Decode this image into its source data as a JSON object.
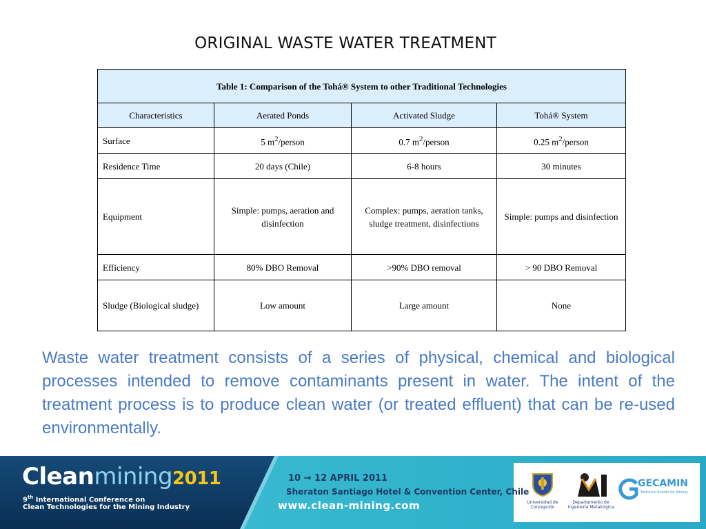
{
  "slide": {
    "title": "ORIGINAL WASTE WATER TREATMENT",
    "body": "Waste water treatment consists of a series of physical, chemical and biological processes intended to remove contaminants present in water. The intent of the treatment process is to produce clean water (or treated effluent) that can be re-used environmentally."
  },
  "table": {
    "caption": "Table 1: Comparison of the Tohá® System to other Traditional Technologies",
    "headers": [
      "Characteristics",
      "Aerated Ponds",
      "Activated Sludge",
      "Tohá® System"
    ],
    "rows": [
      {
        "name": "Surface",
        "cells": [
          [
            "5 m",
            "2",
            "/person"
          ],
          [
            "0.7 m",
            "2",
            "/person"
          ],
          [
            "0.25 m",
            "2",
            "/person"
          ]
        ]
      },
      {
        "name": "Residence Time",
        "cells": [
          "20 days (Chile)",
          "6-8 hours",
          "30 minutes"
        ]
      },
      {
        "name": "Equipment",
        "cells": [
          "Simple: pumps, aeration and disinfection",
          "Complex: pumps, aeration tanks, sludge treatment, disinfections",
          "Simple: pumps and disinfection"
        ]
      },
      {
        "name": "Efficiency",
        "cells": [
          "80% DBO Removal",
          ">90% DBO removal",
          "> 90 DBO Removal"
        ]
      },
      {
        "name": "Sludge (Biological sludge)",
        "cells": [
          "Low amount",
          "Large amount",
          "None"
        ]
      }
    ]
  },
  "footer": {
    "brand_part1": "Clean",
    "brand_part2": "mining",
    "brand_year": "2011",
    "conference_line1_prefix": "9",
    "conference_line1_sup": "th",
    "conference_line1_rest": " International Conference on",
    "conference_line2": "Clean Technologies for the Mining Industry",
    "dates": "10 → 12 APRIL 2011",
    "venue": "Sheraton Santiago Hotel & Convention Center, Chile",
    "website": "www.clean-mining.com",
    "logos": {
      "udec_label_1": "Universidad de",
      "udec_label_2": "Concepción",
      "dimet_label_1": "Departamento de",
      "dimet_label_2": "Ingeniería Metalúrgica",
      "gecamin_name": "GECAMIN",
      "gecamin_tagline": "Technical Events for Mining"
    }
  },
  "colors": {
    "table_header_bg": "#dbeefb",
    "body_text": "#4a7bc4",
    "footer_dark": "#0f3d66",
    "footer_light": "#35b8d0",
    "brand_yellow": "#f5c518"
  }
}
